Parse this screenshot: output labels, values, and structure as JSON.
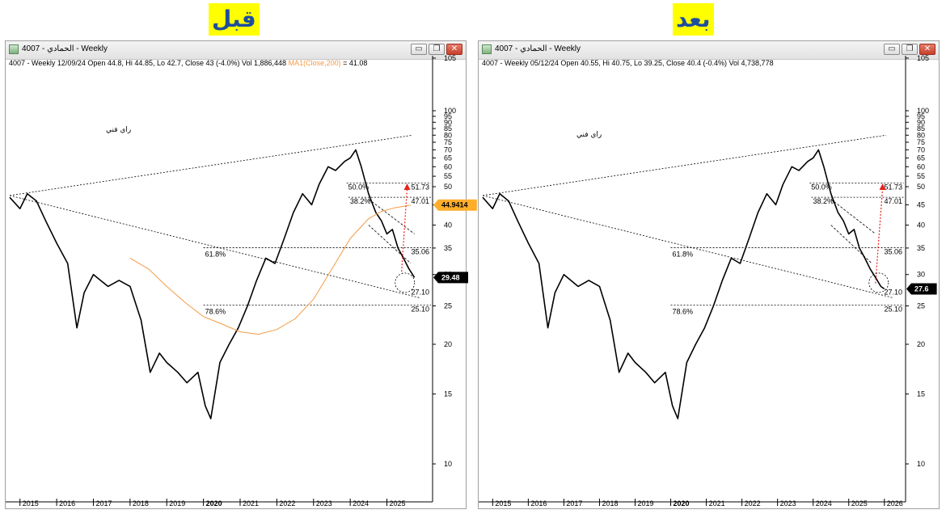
{
  "labels": {
    "before": "قبل",
    "after": "بعد"
  },
  "colors": {
    "ma_line": "#f39b45",
    "target_arrow": "#e8221c",
    "before_badge_bg": "#ffae2a",
    "current_badge_bg": "#000000",
    "tag_bg": "#ffff00",
    "tag_text": "#1f4e9e"
  },
  "icons": {
    "minimize": "minimize-icon",
    "restore": "restore-icon",
    "close": "close-icon",
    "app": "chart-app-icon"
  },
  "window_buttons": {
    "minimize": "▭",
    "restore": "❐",
    "close": "✕"
  },
  "annotation_text": "راي فني",
  "left": {
    "title": "4007 - الحمادي - Weekly",
    "info": "4007 - Weekly 12/09/24 Open 44.8, Hi 44.85, Lo 42.7, Close 43 (-4.0%) Vol 1,886,448",
    "ma_text": "MA1(Close,200)",
    "ma_value": "= 41.08"
  },
  "right": {
    "title": "4007 - الحمادي - Weekly",
    "info": "4007 - Weekly 05/12/24 Open 40.55, Hi 40.75, Lo 39.25, Close 40.4 (-0.4%) Vol 4,738,778"
  },
  "chart_data": [
    {
      "type": "line",
      "title": "4007 - الحمادي - Weekly",
      "y_scale": "log",
      "ylim": [
        8.5,
        108
      ],
      "y_ticks": [
        "105",
        "100",
        "95",
        "90",
        "85",
        "80",
        "75",
        "70",
        "65",
        "60",
        "55",
        "50",
        "45",
        "40",
        "35",
        "30",
        "25",
        "20",
        "15",
        "10"
      ],
      "x_ticks": [
        "2015",
        "2016",
        "2017",
        "2018",
        "2019",
        "2020",
        "2021",
        "2022",
        "2023",
        "2024",
        "2025"
      ],
      "x_bold": "2020",
      "xlim": [
        2014.72,
        2026.2
      ],
      "price": {
        "x": [
          2014.72,
          2015.0,
          2015.2,
          2015.45,
          2015.7,
          2016.0,
          2016.3,
          2016.55,
          2016.75,
          2017.0,
          2017.4,
          2017.7,
          2018.0,
          2018.3,
          2018.55,
          2018.8,
          2019.0,
          2019.3,
          2019.55,
          2019.85,
          2020.05,
          2020.2,
          2020.45,
          2020.7,
          2020.95,
          2021.2,
          2021.45,
          2021.7,
          2021.95,
          2022.2,
          2022.45,
          2022.7,
          2022.95,
          2023.15,
          2023.4,
          2023.6,
          2023.85,
          2024.0,
          2024.15,
          2024.3,
          2024.5,
          2024.7,
          2024.85,
          2025.0,
          2025.15,
          2025.3,
          2025.45,
          2025.6,
          2025.75
        ],
        "y": [
          47,
          44,
          48,
          46,
          41,
          36,
          32,
          22,
          27,
          30,
          28,
          29,
          28,
          23,
          17,
          19,
          18,
          17,
          16,
          17,
          14,
          13,
          18,
          20,
          22,
          25,
          29,
          33,
          32,
          37,
          43,
          48,
          45,
          51,
          60,
          58,
          63,
          65,
          70,
          60,
          48,
          43,
          41,
          38,
          39,
          35,
          33,
          31,
          29.5
        ]
      },
      "ma_series": {
        "name": "MA1(Close,200)",
        "x": [
          2018.0,
          2018.5,
          2019.0,
          2019.5,
          2020.0,
          2020.5,
          2021.0,
          2021.5,
          2022.0,
          2022.5,
          2023.0,
          2023.5,
          2024.0,
          2024.5,
          2024.85,
          2025.2,
          2025.65
        ],
        "y": [
          33,
          31,
          28,
          25.5,
          23.5,
          22.5,
          21.5,
          21.2,
          21.8,
          23.2,
          26,
          31,
          37,
          41.5,
          43.3,
          44.2,
          44.9414
        ]
      },
      "levels": [
        {
          "label": "50.0%",
          "value_label": "51.73",
          "y": 51.73,
          "x_start": 2023.9
        },
        {
          "label": "38.2%",
          "value_label": "47.01",
          "y": 47.01,
          "x_start": 2023.95
        },
        {
          "label": "61.8%",
          "value_label": "35.06",
          "y": 35.06,
          "x_start": 2020.0
        },
        {
          "label": "78.6%",
          "value_label": "25.10",
          "y": 25.1,
          "x_start": 2020.0
        },
        {
          "label": "",
          "value_label": "27.10",
          "y": 27.1,
          "x_start": null
        }
      ],
      "badges": [
        {
          "text": "44.9414",
          "y": 44.9414,
          "role": "ma"
        },
        {
          "text": "29.48",
          "y": 29.48,
          "role": "last"
        }
      ],
      "target_arrow": {
        "x": [
          2025.4,
          2025.55
        ],
        "y": [
          30.5,
          51.5
        ]
      }
    },
    {
      "type": "line",
      "title": "4007 - الحمادي - Weekly",
      "y_scale": "log",
      "ylim": [
        8.5,
        108
      ],
      "y_ticks": [
        "105",
        "100",
        "95",
        "90",
        "85",
        "80",
        "75",
        "70",
        "65",
        "60",
        "55",
        "50",
        "45",
        "40",
        "35",
        "30",
        "25",
        "20",
        "15",
        "10"
      ],
      "x_ticks": [
        "2015",
        "2016",
        "2017",
        "2018",
        "2019",
        "2020",
        "2021",
        "2022",
        "2023",
        "2024",
        "2025",
        "2026"
      ],
      "x_bold": "2020",
      "xlim": [
        2014.72,
        2026.55
      ],
      "price": {
        "x": [
          2014.72,
          2015.0,
          2015.2,
          2015.45,
          2015.7,
          2016.0,
          2016.3,
          2016.55,
          2016.75,
          2017.0,
          2017.4,
          2017.7,
          2018.0,
          2018.3,
          2018.55,
          2018.8,
          2019.0,
          2019.3,
          2019.55,
          2019.85,
          2020.05,
          2020.2,
          2020.45,
          2020.7,
          2020.95,
          2021.2,
          2021.45,
          2021.7,
          2021.95,
          2022.2,
          2022.45,
          2022.7,
          2022.95,
          2023.15,
          2023.4,
          2023.6,
          2023.85,
          2024.0,
          2024.15,
          2024.3,
          2024.5,
          2024.7,
          2024.85,
          2025.0,
          2025.15,
          2025.3,
          2025.45,
          2025.6,
          2025.75,
          2025.9,
          2026.0
        ],
        "y": [
          47,
          44,
          48,
          46,
          41,
          36,
          32,
          22,
          27,
          30,
          28,
          29,
          28,
          23,
          17,
          19,
          18,
          17,
          16,
          17,
          14,
          13,
          18,
          20,
          22,
          25,
          29,
          33,
          32,
          37,
          43,
          48,
          45,
          51,
          60,
          58,
          63,
          65,
          70,
          60,
          48,
          43,
          41,
          38,
          39,
          35,
          33,
          31,
          29.5,
          28,
          27.6
        ]
      },
      "levels": [
        {
          "label": "50.0%",
          "value_label": "51.73",
          "y": 51.73,
          "x_start": 2023.9
        },
        {
          "label": "38.2%",
          "value_label": "47.01",
          "y": 47.01,
          "x_start": 2023.95
        },
        {
          "label": "61.8%",
          "value_label": "35.06",
          "y": 35.06,
          "x_start": 2020.0
        },
        {
          "label": "78.6%",
          "value_label": "25.10",
          "y": 25.1,
          "x_start": 2020.0
        },
        {
          "label": "",
          "value_label": "27.10",
          "y": 27.1,
          "x_start": null
        }
      ],
      "badges": [
        {
          "text": "27.6",
          "y": 27.6,
          "role": "last"
        }
      ],
      "target_arrow": {
        "x": [
          2025.75,
          2025.95
        ],
        "y": [
          28.5,
          51.5
        ]
      }
    }
  ]
}
